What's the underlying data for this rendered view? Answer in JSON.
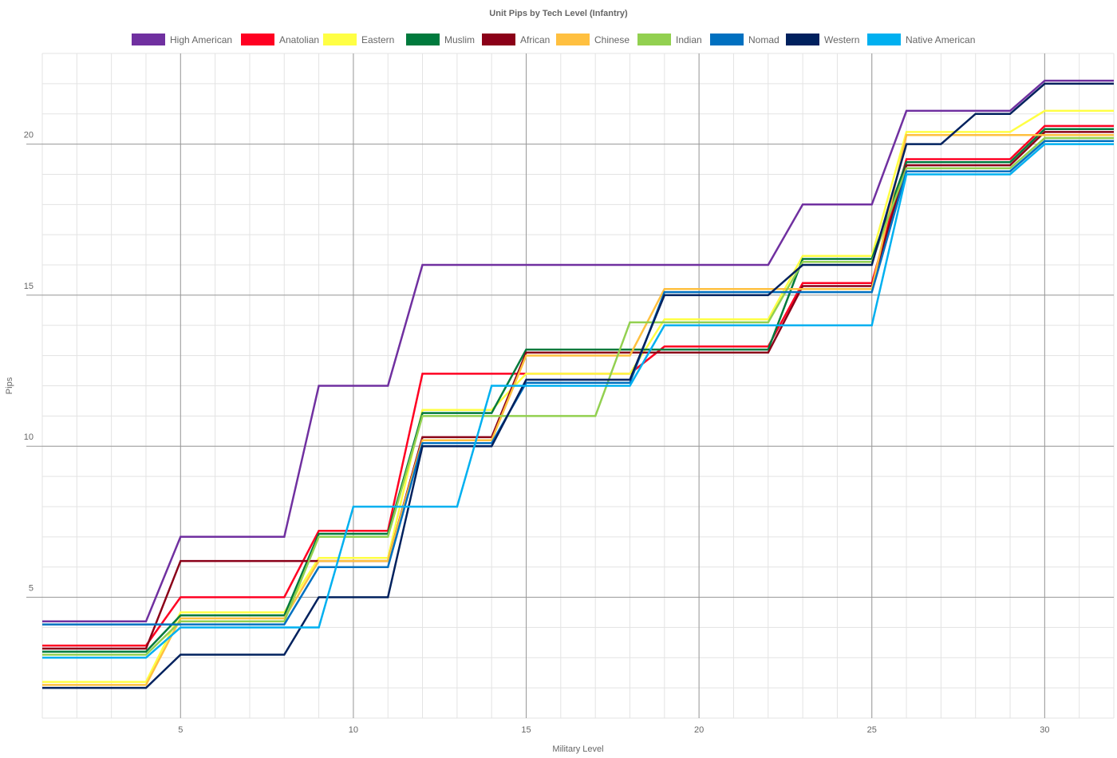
{
  "chart_data": {
    "type": "line",
    "title": "Unit Pips by Tech Level (Infantry)",
    "xlabel": "Military Level",
    "ylabel": "Pips",
    "xlim": [
      1,
      32
    ],
    "ylim": [
      1,
      23
    ],
    "x_ticks": [
      5,
      10,
      15,
      20,
      25,
      30
    ],
    "y_ticks": [
      5,
      10,
      15,
      20
    ],
    "grid": true,
    "legend_position": "top",
    "x": [
      1,
      2,
      3,
      4,
      5,
      6,
      7,
      8,
      9,
      10,
      11,
      12,
      13,
      14,
      15,
      16,
      17,
      18,
      19,
      20,
      21,
      22,
      23,
      24,
      25,
      26,
      27,
      28,
      29,
      30,
      31,
      32
    ],
    "series": [
      {
        "name": "High American",
        "color": "#7030a0",
        "values": [
          4.2,
          4.2,
          4.2,
          4.2,
          7,
          7,
          7,
          7,
          12,
          12,
          12,
          16,
          16,
          16,
          16,
          16,
          16,
          16,
          16,
          16,
          16,
          16,
          18,
          18,
          18,
          21.1,
          21.1,
          21.1,
          21.1,
          22.1,
          22.1,
          22.1
        ]
      },
      {
        "name": "Anatolian",
        "color": "#ff0022",
        "values": [
          3.4,
          3.4,
          3.4,
          3.4,
          5,
          5,
          5,
          5,
          7.2,
          7.2,
          7.2,
          12.4,
          12.4,
          12.4,
          12.4,
          12.4,
          12.4,
          12.4,
          13.3,
          13.3,
          13.3,
          13.3,
          15.4,
          15.4,
          15.4,
          19.5,
          19.5,
          19.5,
          19.5,
          20.6,
          20.6,
          20.6
        ]
      },
      {
        "name": "Eastern",
        "color": "#ffff44",
        "values": [
          2.2,
          2.2,
          2.2,
          2.2,
          4.5,
          4.5,
          4.5,
          4.5,
          6.3,
          6.3,
          6.3,
          11.2,
          11.2,
          11.2,
          12.4,
          12.4,
          12.4,
          12.4,
          14.2,
          14.2,
          14.2,
          14.2,
          16.3,
          16.3,
          16.3,
          20.4,
          20.4,
          20.4,
          20.4,
          21.1,
          21.1,
          21.1
        ]
      },
      {
        "name": "Muslim",
        "color": "#007a3d",
        "values": [
          3.2,
          3.2,
          3.2,
          3.2,
          4.4,
          4.4,
          4.4,
          4.4,
          7.1,
          7.1,
          7.1,
          11.1,
          11.1,
          11.1,
          13.2,
          13.2,
          13.2,
          13.2,
          13.2,
          13.2,
          13.2,
          13.2,
          16.2,
          16.2,
          16.2,
          19.4,
          19.4,
          19.4,
          19.4,
          20.5,
          20.5,
          20.5
        ]
      },
      {
        "name": "African",
        "color": "#8b0018",
        "values": [
          3.3,
          3.3,
          3.3,
          3.3,
          6.2,
          6.2,
          6.2,
          6.2,
          6.2,
          6.2,
          6.2,
          10.3,
          10.3,
          10.3,
          13.1,
          13.1,
          13.1,
          13.1,
          13.1,
          13.1,
          13.1,
          13.1,
          15.3,
          15.3,
          15.3,
          19.3,
          19.3,
          19.3,
          19.3,
          20.4,
          20.4,
          20.4
        ]
      },
      {
        "name": "Chinese",
        "color": "#ffc040",
        "values": [
          2.1,
          2.1,
          2.1,
          2.1,
          4.3,
          4.3,
          4.3,
          4.3,
          6.2,
          6.2,
          6.2,
          10.2,
          10.2,
          10.2,
          13,
          13,
          13,
          13,
          15.2,
          15.2,
          15.2,
          15.2,
          15.2,
          15.2,
          15.2,
          20.3,
          20.3,
          20.3,
          20.3,
          20.3,
          20.3,
          20.3
        ]
      },
      {
        "name": "Indian",
        "color": "#92d050",
        "values": [
          3.1,
          3.1,
          3.1,
          3.1,
          4.2,
          4.2,
          4.2,
          4.2,
          7,
          7,
          7,
          11,
          11,
          11,
          11,
          11,
          11,
          14.1,
          14.1,
          14.1,
          14.1,
          14.1,
          16.1,
          16.1,
          16.1,
          19.2,
          19.2,
          19.2,
          19.2,
          20.2,
          20.2,
          20.2
        ]
      },
      {
        "name": "Nomad",
        "color": "#0070c0",
        "values": [
          4.1,
          4.1,
          4.1,
          4.1,
          4.1,
          4.1,
          4.1,
          4.1,
          6,
          6,
          6,
          10.1,
          10.1,
          10.1,
          12.1,
          12.1,
          12.1,
          12.1,
          15.1,
          15.1,
          15.1,
          15.1,
          15.1,
          15.1,
          15.1,
          19.1,
          19.1,
          19.1,
          19.1,
          20.1,
          20.1,
          20.1
        ]
      },
      {
        "name": "Western",
        "color": "#00215e",
        "values": [
          2,
          2,
          2,
          2,
          3.1,
          3.1,
          3.1,
          3.1,
          5,
          5,
          5,
          10,
          10,
          10,
          12.2,
          12.2,
          12.2,
          12.2,
          15,
          15,
          15,
          15,
          16,
          16,
          16,
          20,
          20,
          21,
          21,
          22,
          22,
          22
        ]
      },
      {
        "name": "Native American",
        "color": "#00b0f0",
        "values": [
          3,
          3,
          3,
          3,
          4,
          4,
          4,
          4,
          4,
          8,
          8,
          8,
          8,
          12,
          12,
          12,
          12,
          12,
          14,
          14,
          14,
          14,
          14,
          14,
          14,
          19,
          19,
          19,
          19,
          20,
          20,
          20
        ]
      }
    ]
  }
}
